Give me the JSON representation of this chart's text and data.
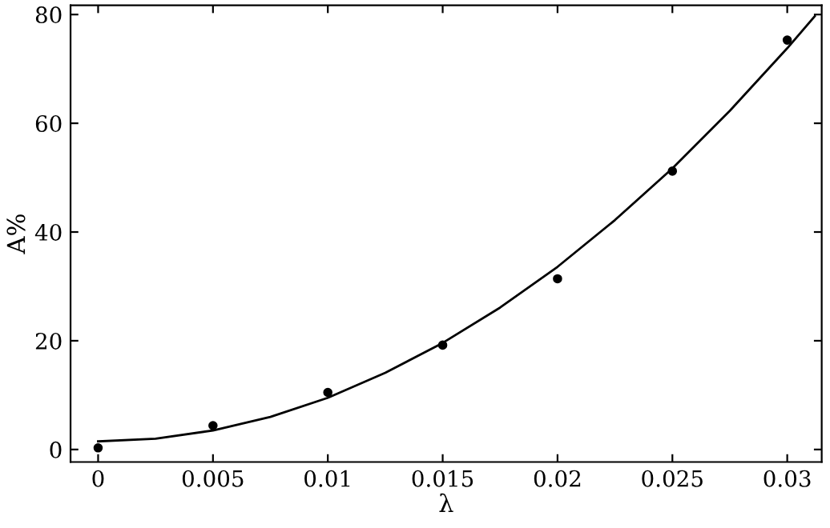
{
  "chart_data": {
    "type": "scatter",
    "xlabel": "λ",
    "ylabel": "A%",
    "series": [
      {
        "color": "#000000",
        "marker": "circle",
        "x": [
          0,
          0.005,
          0.01,
          0.015,
          0.02,
          0.025,
          0.03
        ],
        "values": [
          0.3,
          4.4,
          10.5,
          19.2,
          31.4,
          51.2,
          75.3
        ]
      },
      {
        "type": "line",
        "color": "#000000",
        "marker": "none",
        "line_style": "solid",
        "x": [
          0,
          0.0025,
          0.005,
          0.0075,
          0.01,
          0.0125,
          0.015,
          0.0175,
          0.02,
          0.0225,
          0.025,
          0.0275,
          0.03,
          0.0312
        ],
        "values": [
          1.5,
          2.0,
          3.5,
          6.0,
          9.5,
          14.1,
          19.6,
          26.1,
          33.6,
          42.2,
          51.7,
          62.3,
          73.8,
          79.7
        ]
      }
    ],
    "xlim": [
      -0.0012,
      0.0315
    ],
    "ylim": [
      -2.3,
      81.7
    ],
    "xticks": [
      0,
      0.005,
      0.01,
      0.015,
      0.02,
      0.025,
      0.03
    ],
    "yticks": [
      0,
      20,
      40,
      60,
      80
    ],
    "grid": false,
    "legend": false
  }
}
